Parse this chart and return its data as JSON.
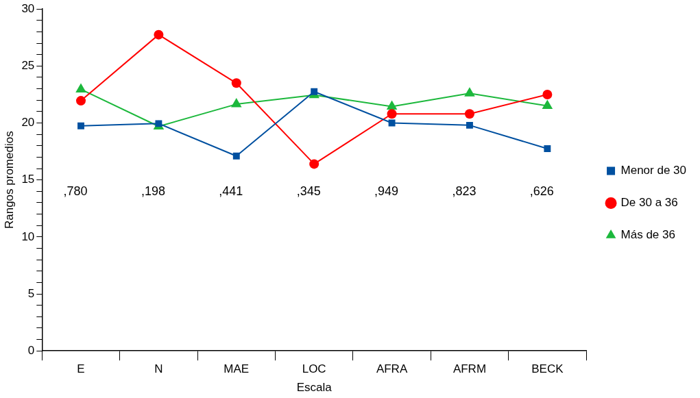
{
  "chart_data": {
    "type": "line",
    "xlabel": "Escala",
    "ylabel": "Rangos promedios",
    "categories": [
      "E",
      "N",
      "MAE",
      "LOC",
      "AFRA",
      "AFRM",
      "BECK"
    ],
    "series": [
      {
        "name": "Menor de 30",
        "color": "#0050a0",
        "marker": "square",
        "values": [
          19.75,
          19.95,
          17.1,
          22.75,
          20.0,
          19.8,
          17.75
        ]
      },
      {
        "name": "De 30 a 36",
        "color": "#ff0000",
        "marker": "circle",
        "values": [
          21.95,
          27.75,
          23.5,
          16.4,
          20.8,
          20.8,
          22.5
        ]
      },
      {
        "name": "Más de 36",
        "color": "#1cb83c",
        "marker": "triangle",
        "values": [
          22.95,
          19.7,
          21.65,
          22.45,
          21.45,
          22.6,
          21.5
        ]
      }
    ],
    "ylim": [
      0,
      30
    ],
    "yticks": [
      0,
      {
        "value": 1,
        "label": null
      },
      {
        "value": 2,
        "label": null
      },
      {
        "value": 3,
        "label": null
      },
      {
        "value": 4,
        "label": null
      },
      5,
      {
        "value": 6,
        "label": null
      },
      {
        "value": 7,
        "label": null
      },
      {
        "value": 8,
        "label": null
      },
      {
        "value": 9,
        "label": null
      },
      10,
      {
        "value": 11,
        "label": null
      },
      {
        "value": 12,
        "label": null
      },
      {
        "value": 13,
        "label": null
      },
      {
        "value": 14,
        "label": null
      },
      15,
      {
        "value": 16,
        "label": null
      },
      {
        "value": 17,
        "label": null
      },
      {
        "value": 18,
        "label": null
      },
      {
        "value": 19,
        "label": null
      },
      20,
      {
        "value": 21,
        "label": null
      },
      {
        "value": 22,
        "label": null
      },
      {
        "value": 23,
        "label": null
      },
      {
        "value": 24,
        "label": null
      },
      25,
      {
        "value": 26,
        "label": null
      },
      {
        "value": 27,
        "label": null
      },
      {
        "value": 28,
        "label": null
      },
      {
        "value": 29,
        "label": null
      },
      30
    ],
    "annotations": [
      ",780",
      ",198",
      ",441",
      ",345",
      ",949",
      ",823",
      ",626"
    ],
    "grid": false,
    "legend": "right",
    "line_style": "solid"
  }
}
